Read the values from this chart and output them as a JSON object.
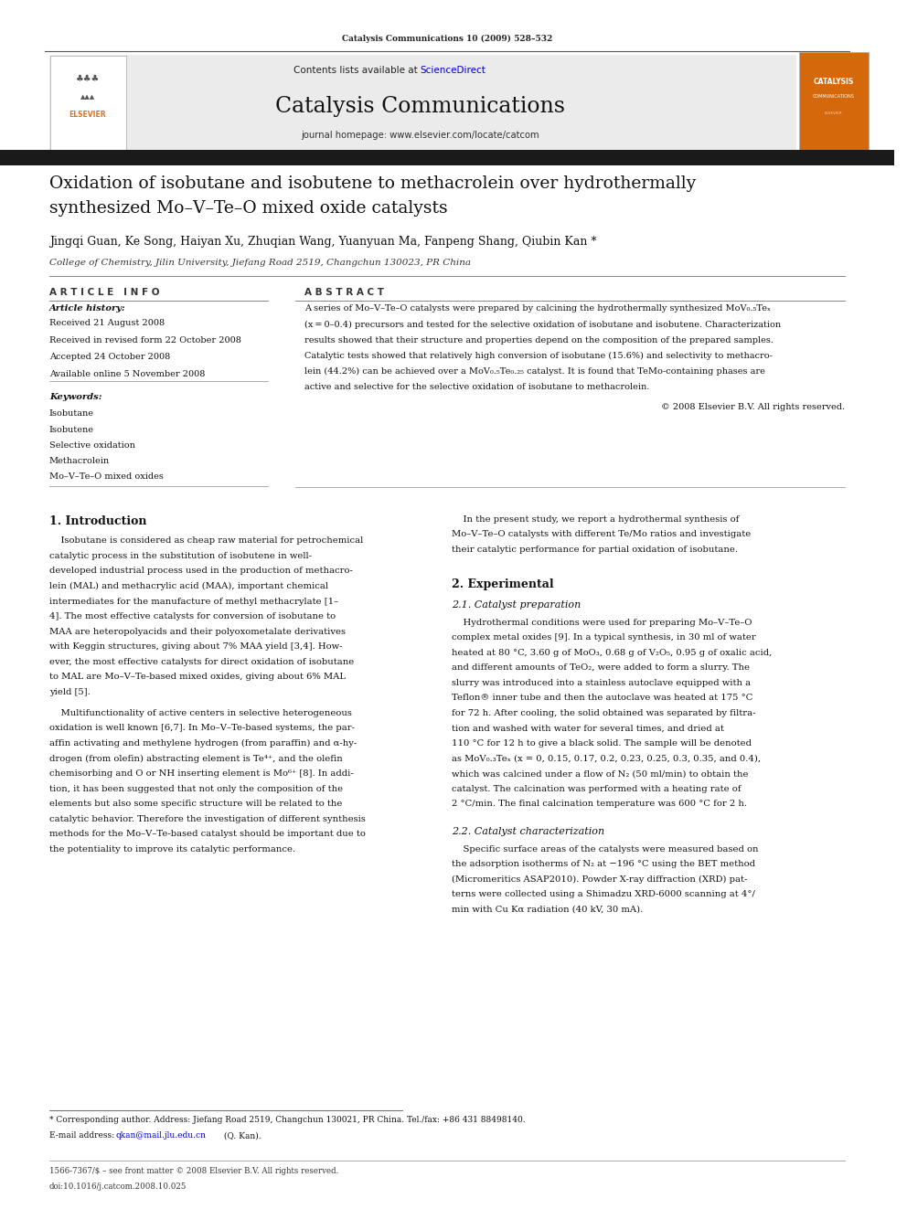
{
  "page_width": 9.92,
  "page_height": 13.23,
  "background_color": "#ffffff",
  "header_top_text": "Catalysis Communications 10 (2009) 528–532",
  "header_bg_color": "#e8e8e8",
  "header_contents_text": "Contents lists available at ",
  "header_sciencedirect_text": "ScienceDirect",
  "header_sciencedirect_color": "#0000cc",
  "journal_title": "Catalysis Communications",
  "journal_homepage": "journal homepage: www.elsevier.com/locate/catcom",
  "dark_bar_color": "#1a1a1a",
  "orange_elsevier_color": "#e07020",
  "article_title_line1": "Oxidation of isobutane and isobutene to methacrolein over hydrothermally",
  "article_title_line2": "synthesized Mo–V–Te–O mixed oxide catalysts",
  "authors": "Jingqi Guan, Ke Song, Haiyan Xu, Zhuqian Wang, Yuanyuan Ma, Fanpeng Shang, Qiubin Kan *",
  "affiliation": "College of Chemistry, Jilin University, Jiefang Road 2519, Changchun 130023, PR China",
  "article_info_header": "A R T I C L E   I N F O",
  "abstract_header": "A B S T R A C T",
  "article_history_label": "Article history:",
  "received": "Received 21 August 2008",
  "revised": "Received in revised form 22 October 2008",
  "accepted": "Accepted 24 October 2008",
  "available": "Available online 5 November 2008",
  "keywords_label": "Keywords:",
  "keywords": [
    "Isobutane",
    "Isobutene",
    "Selective oxidation",
    "Methacrolein",
    "Mo–V–Te–O mixed oxides"
  ],
  "abstract_copyright": "© 2008 Elsevier B.V. All rights reserved.",
  "intro_header": "1. Introduction",
  "experimental_header": "2. Experimental",
  "catalyst_prep_header": "2.1. Catalyst preparation",
  "catalyst_char_header": "2.2. Catalyst characterization",
  "footnote_star": "* Corresponding author. Address: Jiefang Road 2519, Changchun 130021, PR China. Tel./fax: +86 431 88498140.",
  "footnote_email_label": "E-mail address: ",
  "footnote_email": "qkan@mail.jlu.edu.cn",
  "footnote_email_suffix": " (Q. Kan).",
  "footer_issn": "1566-7367/$ – see front matter © 2008 Elsevier B.V. All rights reserved.",
  "footer_doi": "doi:10.1016/j.catcom.2008.10.025"
}
